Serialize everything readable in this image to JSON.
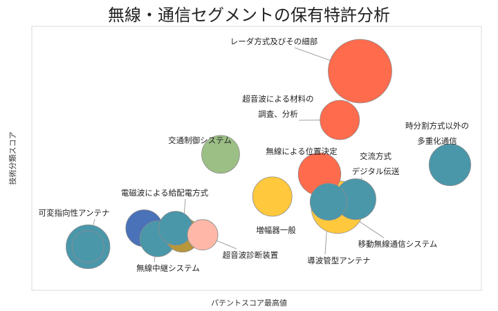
{
  "chart_data": {
    "type": "scatter",
    "title": "無線・通信セグメントの保有特許分析",
    "xlabel": "パテントスコア最高値",
    "ylabel": "技術分類スコア",
    "grid": false,
    "legend": "none",
    "points": [
      {
        "label": "レーダ方式及びその細部",
        "x": 0.73,
        "y": 0.83,
        "size": 1.0,
        "color": "#FF6B4D",
        "label_lines": [
          "レーダ方式及びその細部"
        ]
      },
      {
        "label": "超音波による材料の調査、分析",
        "x": 0.685,
        "y": 0.645,
        "size": 0.25,
        "color": "#FF6B4D",
        "label_lines": [
          "超音波による材料の",
          "調査、分析"
        ]
      },
      {
        "label": "時分割方式以外の多重化通信",
        "x": 0.93,
        "y": 0.475,
        "size": 0.3,
        "color": "#4A97AA",
        "label_lines": [
          "時分割方式以外の",
          "多重化通信"
        ]
      },
      {
        "label": "交通制御システム",
        "x": 0.42,
        "y": 0.515,
        "size": 0.22,
        "color": "#9BBF85",
        "label_lines": [
          "交通制御システム"
        ]
      },
      {
        "label": "無線による位置決定",
        "x": 0.64,
        "y": 0.44,
        "size": 0.32,
        "color": "#FF6B4D",
        "label_lines": [
          "無線による位置決定"
        ]
      },
      {
        "label": "交流方式デジタル伝送",
        "x": 0.72,
        "y": 0.345,
        "size": 0.28,
        "color": "#4A97AA",
        "label_lines": [
          "交流方式",
          "デジタル伝送"
        ]
      },
      {
        "label": "増幅器一般",
        "x": 0.535,
        "y": 0.355,
        "size": 0.25,
        "color": "#FFC83D",
        "label_lines": [
          "増幅器一般"
        ]
      },
      {
        "label": "移動無線通信システム",
        "x": 0.68,
        "y": 0.315,
        "size": 0.6,
        "color": "#FFC83D",
        "label_lines": [
          "移動無線通信システム"
        ]
      },
      {
        "label": "導波管型アンテナ",
        "x": 0.66,
        "y": 0.335,
        "size": 0.2,
        "color": "#4A97AA",
        "label_lines": [
          "導波管型アンテナ"
        ]
      },
      {
        "label": "電磁波による給配電方式",
        "x": 0.335,
        "y": 0.21,
        "size": 0.16,
        "color": "#B8963A",
        "label_lines": [
          "電磁波による給配電方式"
        ]
      },
      {
        "label": "電磁波による給配電方式(青)",
        "x": 0.25,
        "y": 0.235,
        "size": 0.2,
        "color": "#4A72B8",
        "label_lines": []
      },
      {
        "label": "電磁波による給配電方式(青緑)",
        "x": 0.32,
        "y": 0.235,
        "size": 0.15,
        "color": "#4A97AA",
        "label_lines": []
      },
      {
        "label": "無線中継システム",
        "x": 0.28,
        "y": 0.195,
        "size": 0.18,
        "color": "#4A97AA",
        "label_lines": [
          "無線中継システム"
        ]
      },
      {
        "label": "超音波診断装置",
        "x": 0.38,
        "y": 0.21,
        "size": 0.1,
        "color": "#FFB8A8",
        "label_lines": [
          "超音波診断装置"
        ]
      },
      {
        "label": "可変指向性アンテナ",
        "x": 0.125,
        "y": 0.165,
        "size": 0.35,
        "color": "#4A97AA",
        "label_lines": [
          "可変指向性アンテナ"
        ]
      },
      {
        "label": "可変指向性アンテナ(小)",
        "x": 0.125,
        "y": 0.165,
        "size": 0.12,
        "color": "#4A97AA",
        "label_lines": []
      }
    ]
  }
}
